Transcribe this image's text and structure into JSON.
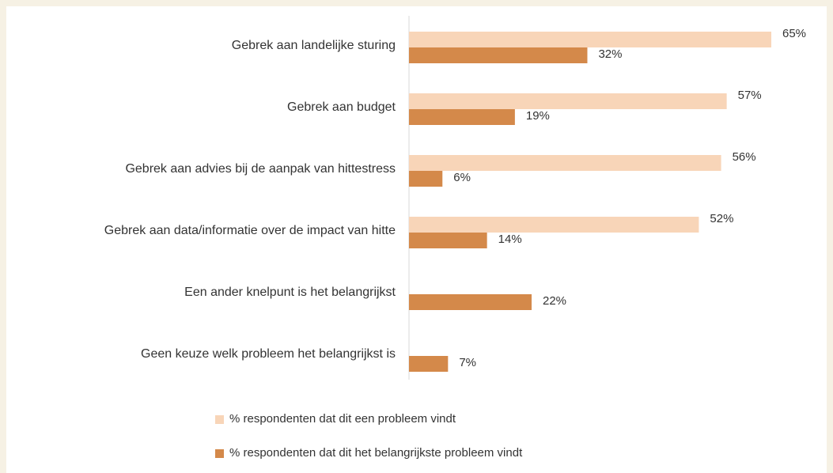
{
  "chart_data": {
    "type": "hbar",
    "categories": [
      "Gebrek aan landelijke sturing",
      "Gebrek aan budget",
      "Gebrek aan advies bij de aanpak van hittestress",
      "Gebrek aan data/informatie over de impact van hitte",
      "Een ander knelpunt is het belangrijkst",
      "Geen keuze welk probleem het belangrijkst is"
    ],
    "series": [
      {
        "name": "% respondenten dat dit een probleem vindt",
        "color": "#f8d5b8",
        "values": [
          65,
          57,
          56,
          52,
          null,
          null
        ],
        "value_labels": [
          "65%",
          "57%",
          "56%",
          "52%",
          null,
          null
        ]
      },
      {
        "name": "% respondenten dat dit het belangrijkste probleem vindt",
        "color": "#d4894a",
        "values": [
          32,
          19,
          6,
          14,
          22,
          7
        ],
        "value_labels": [
          "32%",
          "19%",
          "6%",
          "14%",
          "22%",
          "7%"
        ]
      }
    ],
    "xlim": [
      0,
      65
    ],
    "legend": "bottom"
  }
}
